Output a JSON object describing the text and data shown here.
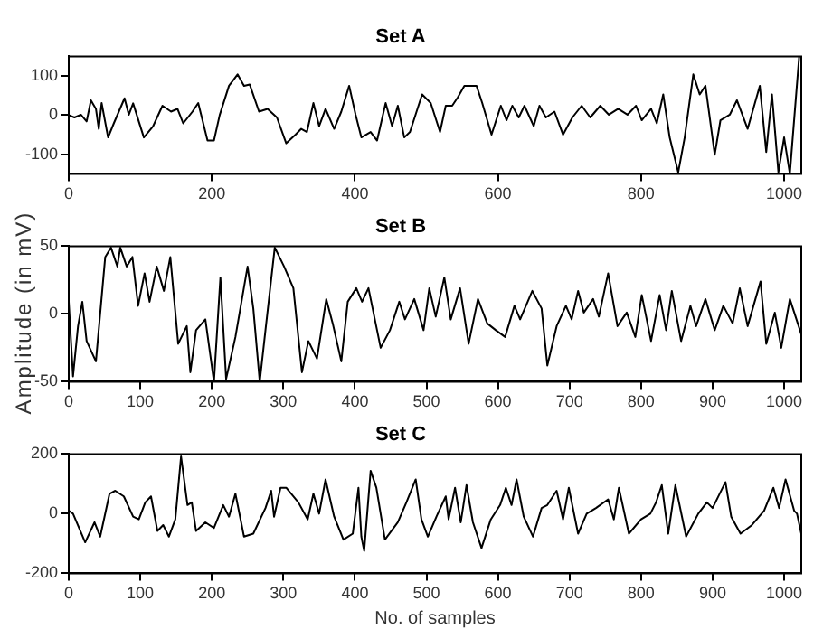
{
  "chart_data": [
    {
      "type": "line",
      "title": "Set A",
      "xlim": [
        0,
        1024
      ],
      "xticks": [
        0,
        200,
        400,
        600,
        800,
        1000
      ],
      "ylim": [
        -150,
        150
      ],
      "yticks": [
        -100,
        0,
        100
      ],
      "grid": false,
      "legend": false,
      "marker": "none",
      "line_style": "solid",
      "series": [
        {
          "color": "#000000",
          "x": [
            0,
            8,
            17,
            25,
            31,
            38,
            42,
            46,
            55,
            63,
            78,
            84,
            90,
            105,
            118,
            131,
            143,
            152,
            160,
            173,
            181,
            194,
            203,
            211,
            224,
            236,
            245,
            253,
            266,
            278,
            291,
            304,
            317,
            325,
            333,
            342,
            350,
            359,
            371,
            381,
            392,
            401,
            409,
            422,
            431,
            443,
            452,
            460,
            469,
            477,
            494,
            506,
            519,
            527,
            536,
            544,
            553,
            570,
            578,
            591,
            604,
            612,
            620,
            629,
            637,
            650,
            658,
            667,
            679,
            691,
            704,
            717,
            729,
            743,
            755,
            768,
            781,
            793,
            801,
            814,
            822,
            831,
            840,
            852,
            861,
            873,
            882,
            890,
            903,
            911,
            924,
            934,
            949,
            966,
            975,
            983,
            992,
            1000,
            1008,
            1021
          ],
          "values": [
            0,
            -6,
            1,
            -16,
            38,
            16,
            -35,
            31,
            -57,
            -21,
            43,
            1,
            30,
            -57,
            -28,
            24,
            9,
            16,
            -21,
            9,
            31,
            -65,
            -65,
            0,
            75,
            104,
            75,
            78,
            9,
            16,
            -6,
            -72,
            -50,
            -35,
            -43,
            31,
            -28,
            16,
            -35,
            9,
            75,
            1,
            -57,
            -43,
            -65,
            31,
            -28,
            24,
            -57,
            -43,
            53,
            31,
            -43,
            24,
            24,
            46,
            75,
            75,
            31,
            -50,
            24,
            -13,
            24,
            -6,
            24,
            -28,
            24,
            -6,
            9,
            -50,
            -6,
            24,
            -6,
            24,
            1,
            16,
            1,
            24,
            -13,
            16,
            -21,
            53,
            -57,
            -146,
            -57,
            104,
            53,
            75,
            -101,
            -13,
            1,
            38,
            -35,
            75,
            -94,
            53,
            -146,
            -57,
            -150,
            149
          ]
        }
      ]
    },
    {
      "type": "line",
      "title": "Set B",
      "ylabel": "Amplitude (in mV)",
      "xlim": [
        0,
        1024
      ],
      "xticks": [
        0,
        100,
        200,
        300,
        400,
        500,
        600,
        700,
        800,
        900,
        1000
      ],
      "ylim": [
        -50,
        50
      ],
      "yticks": [
        -50,
        0,
        50
      ],
      "grid": false,
      "legend": false,
      "marker": "none",
      "line_style": "solid",
      "series": [
        {
          "color": "#000000",
          "x": [
            0,
            6,
            13,
            19,
            25,
            38,
            51,
            59,
            68,
            72,
            81,
            89,
            97,
            106,
            113,
            123,
            133,
            142,
            153,
            165,
            170,
            178,
            191,
            203,
            212,
            220,
            233,
            250,
            258,
            267,
            275,
            288,
            301,
            314,
            326,
            335,
            347,
            360,
            369,
            381,
            390,
            402,
            410,
            419,
            436,
            449,
            462,
            470,
            483,
            496,
            504,
            513,
            525,
            534,
            547,
            559,
            572,
            585,
            597,
            610,
            623,
            631,
            648,
            661,
            669,
            682,
            695,
            703,
            712,
            720,
            733,
            741,
            754,
            767,
            780,
            792,
            801,
            814,
            826,
            835,
            843,
            856,
            869,
            877,
            890,
            903,
            915,
            928,
            938,
            949,
            967,
            975,
            987,
            996,
            1008,
            1016,
            1024
          ],
          "values": [
            9,
            -46,
            -9,
            9,
            -20,
            -35,
            42,
            49,
            35,
            49,
            35,
            42,
            6,
            30,
            9,
            35,
            17,
            42,
            -22,
            -9,
            -43,
            -12,
            -4,
            -50,
            27,
            -48,
            -17,
            35,
            4,
            -50,
            -12,
            49,
            35,
            19,
            -43,
            -20,
            -33,
            11,
            -7,
            -35,
            9,
            19,
            9,
            19,
            -25,
            -12,
            9,
            -4,
            11,
            -12,
            19,
            -2,
            27,
            -4,
            19,
            -22,
            11,
            -7,
            -12,
            -17,
            6,
            -4,
            17,
            4,
            -38,
            -9,
            6,
            -4,
            17,
            1,
            11,
            -2,
            30,
            -9,
            1,
            -17,
            14,
            -20,
            14,
            -12,
            17,
            -20,
            6,
            -9,
            11,
            -12,
            6,
            -7,
            19,
            -9,
            24,
            -22,
            1,
            -25,
            11,
            -2,
            -15
          ]
        }
      ]
    },
    {
      "type": "line",
      "title": "Set C",
      "xlabel": "No. of samples",
      "xlim": [
        0,
        1024
      ],
      "xticks": [
        0,
        100,
        200,
        300,
        400,
        500,
        600,
        700,
        800,
        900,
        1000
      ],
      "ylim": [
        -200,
        200
      ],
      "yticks": [
        -200,
        0,
        200
      ],
      "grid": false,
      "legend": false,
      "marker": "none",
      "line_style": "solid",
      "series": [
        {
          "color": "#000000",
          "x": [
            0,
            6,
            23,
            36,
            44,
            57,
            65,
            77,
            90,
            98,
            107,
            115,
            124,
            132,
            140,
            149,
            157,
            166,
            172,
            178,
            191,
            203,
            216,
            224,
            233,
            245,
            258,
            275,
            283,
            287,
            296,
            304,
            321,
            334,
            342,
            350,
            359,
            371,
            384,
            397,
            405,
            409,
            413,
            422,
            430,
            442,
            460,
            472,
            485,
            493,
            502,
            514,
            527,
            531,
            540,
            548,
            556,
            565,
            577,
            590,
            603,
            611,
            619,
            626,
            636,
            649,
            661,
            669,
            682,
            691,
            699,
            712,
            724,
            737,
            754,
            762,
            769,
            783,
            800,
            813,
            821,
            829,
            838,
            848,
            863,
            880,
            892,
            900,
            918,
            926,
            939,
            955,
            972,
            985,
            993,
            1002,
            1014,
            1018,
            1024
          ],
          "values": [
            10,
            0,
            -96,
            -29,
            -77,
            67,
            77,
            58,
            -10,
            -19,
            38,
            58,
            -58,
            -38,
            -77,
            -19,
            192,
            29,
            38,
            -58,
            -29,
            -48,
            29,
            -10,
            67,
            -77,
            -67,
            19,
            77,
            -10,
            87,
            87,
            38,
            -19,
            67,
            0,
            115,
            -10,
            -87,
            -67,
            87,
            -77,
            -125,
            144,
            87,
            -87,
            -29,
            38,
            115,
            -19,
            -77,
            -10,
            58,
            -19,
            87,
            -29,
            96,
            -29,
            -115,
            -19,
            29,
            87,
            29,
            115,
            -10,
            -77,
            19,
            29,
            77,
            -19,
            87,
            -67,
            0,
            19,
            48,
            -19,
            87,
            -67,
            -19,
            0,
            38,
            96,
            -67,
            96,
            -77,
            0,
            38,
            19,
            106,
            -10,
            -67,
            -38,
            10,
            87,
            19,
            115,
            10,
            0,
            -67
          ]
        }
      ]
    }
  ]
}
